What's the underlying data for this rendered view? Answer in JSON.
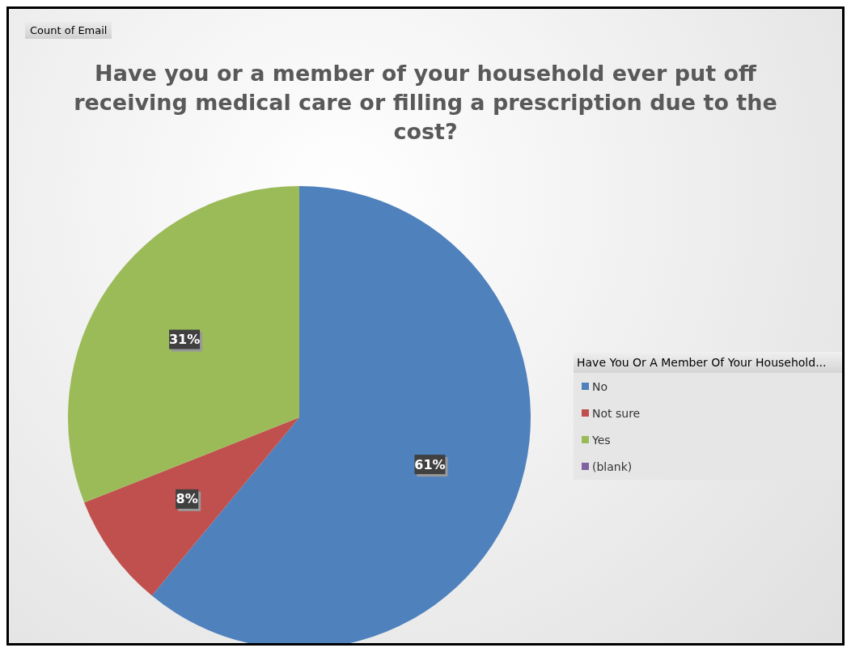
{
  "chart_data": {
    "type": "pie",
    "title": "Have you or a member of your household ever put off receiving medical care or filling a prescription due to the cost?",
    "annotations": [
      "Count of Email"
    ],
    "legend_title": "Have You Or A Member Of Your Household...",
    "categories": [
      "No",
      "Not sure",
      "Yes",
      "(blank)"
    ],
    "values": [
      61,
      8,
      31,
      0
    ],
    "colors": [
      "#4f81bd",
      "#c0504d",
      "#9bbb59",
      "#8064a2"
    ],
    "value_labels": [
      "61%",
      "8%",
      "31%",
      null
    ],
    "legend": "right"
  }
}
